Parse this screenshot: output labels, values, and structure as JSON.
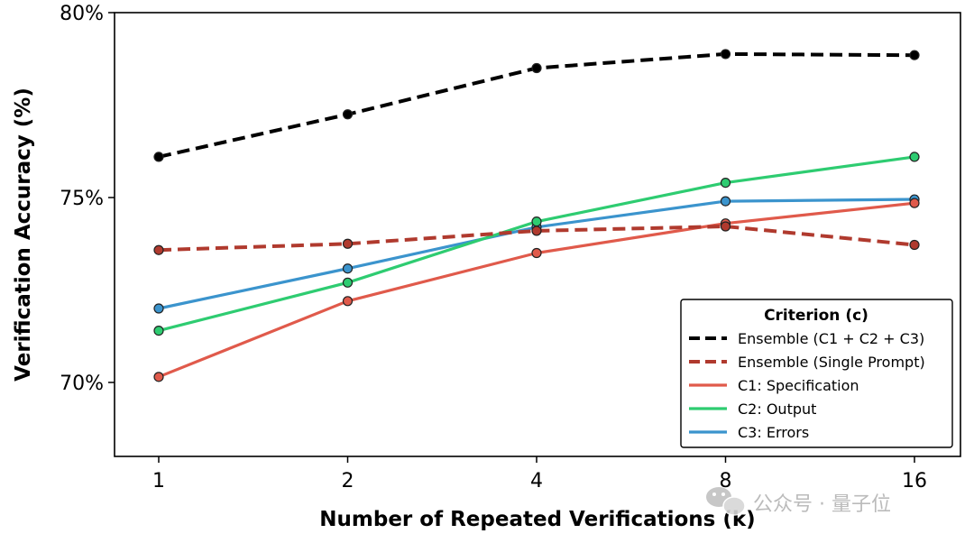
{
  "chart_data": {
    "type": "line",
    "title": "",
    "xlabel": "Number of Repeated Verifications (k)",
    "ylabel": "Verification Accuracy (%)",
    "categories": [
      "1",
      "2",
      "4",
      "8",
      "16"
    ],
    "x": [
      1,
      2,
      4,
      8,
      16
    ],
    "x_scale": "log2",
    "ylim": [
      68,
      80
    ],
    "yticks": [
      70,
      75,
      80
    ],
    "ytick_labels": [
      "70%",
      "75%",
      "80%"
    ],
    "grid": false,
    "legend": {
      "title": "Criterion (c)",
      "placement": "lower-right"
    },
    "series": [
      {
        "name": "Ensemble (C1 + C2 + C3)",
        "values": [
          76.1,
          77.25,
          78.5,
          78.88,
          78.85
        ],
        "color": "#000000",
        "linestyle": "dashed"
      },
      {
        "name": "Ensemble (Single Prompt)",
        "values": [
          73.58,
          73.75,
          74.1,
          74.22,
          73.72
        ],
        "color": "#b03a2e",
        "linestyle": "dashed"
      },
      {
        "name": "C1: Specification",
        "values": [
          70.15,
          72.2,
          73.5,
          74.3,
          74.85
        ],
        "color": "#e05a4b",
        "linestyle": "solid"
      },
      {
        "name": "C2: Output",
        "values": [
          71.4,
          72.7,
          74.35,
          75.4,
          76.1
        ],
        "color": "#2ecc71",
        "linestyle": "solid"
      },
      {
        "name": "C3: Errors",
        "values": [
          72.0,
          73.08,
          74.2,
          74.9,
          74.95
        ],
        "color": "#3b94cd",
        "linestyle": "solid"
      }
    ]
  },
  "watermark": {
    "icon": "wechat-icon",
    "text": "公众号 · 量子位"
  }
}
